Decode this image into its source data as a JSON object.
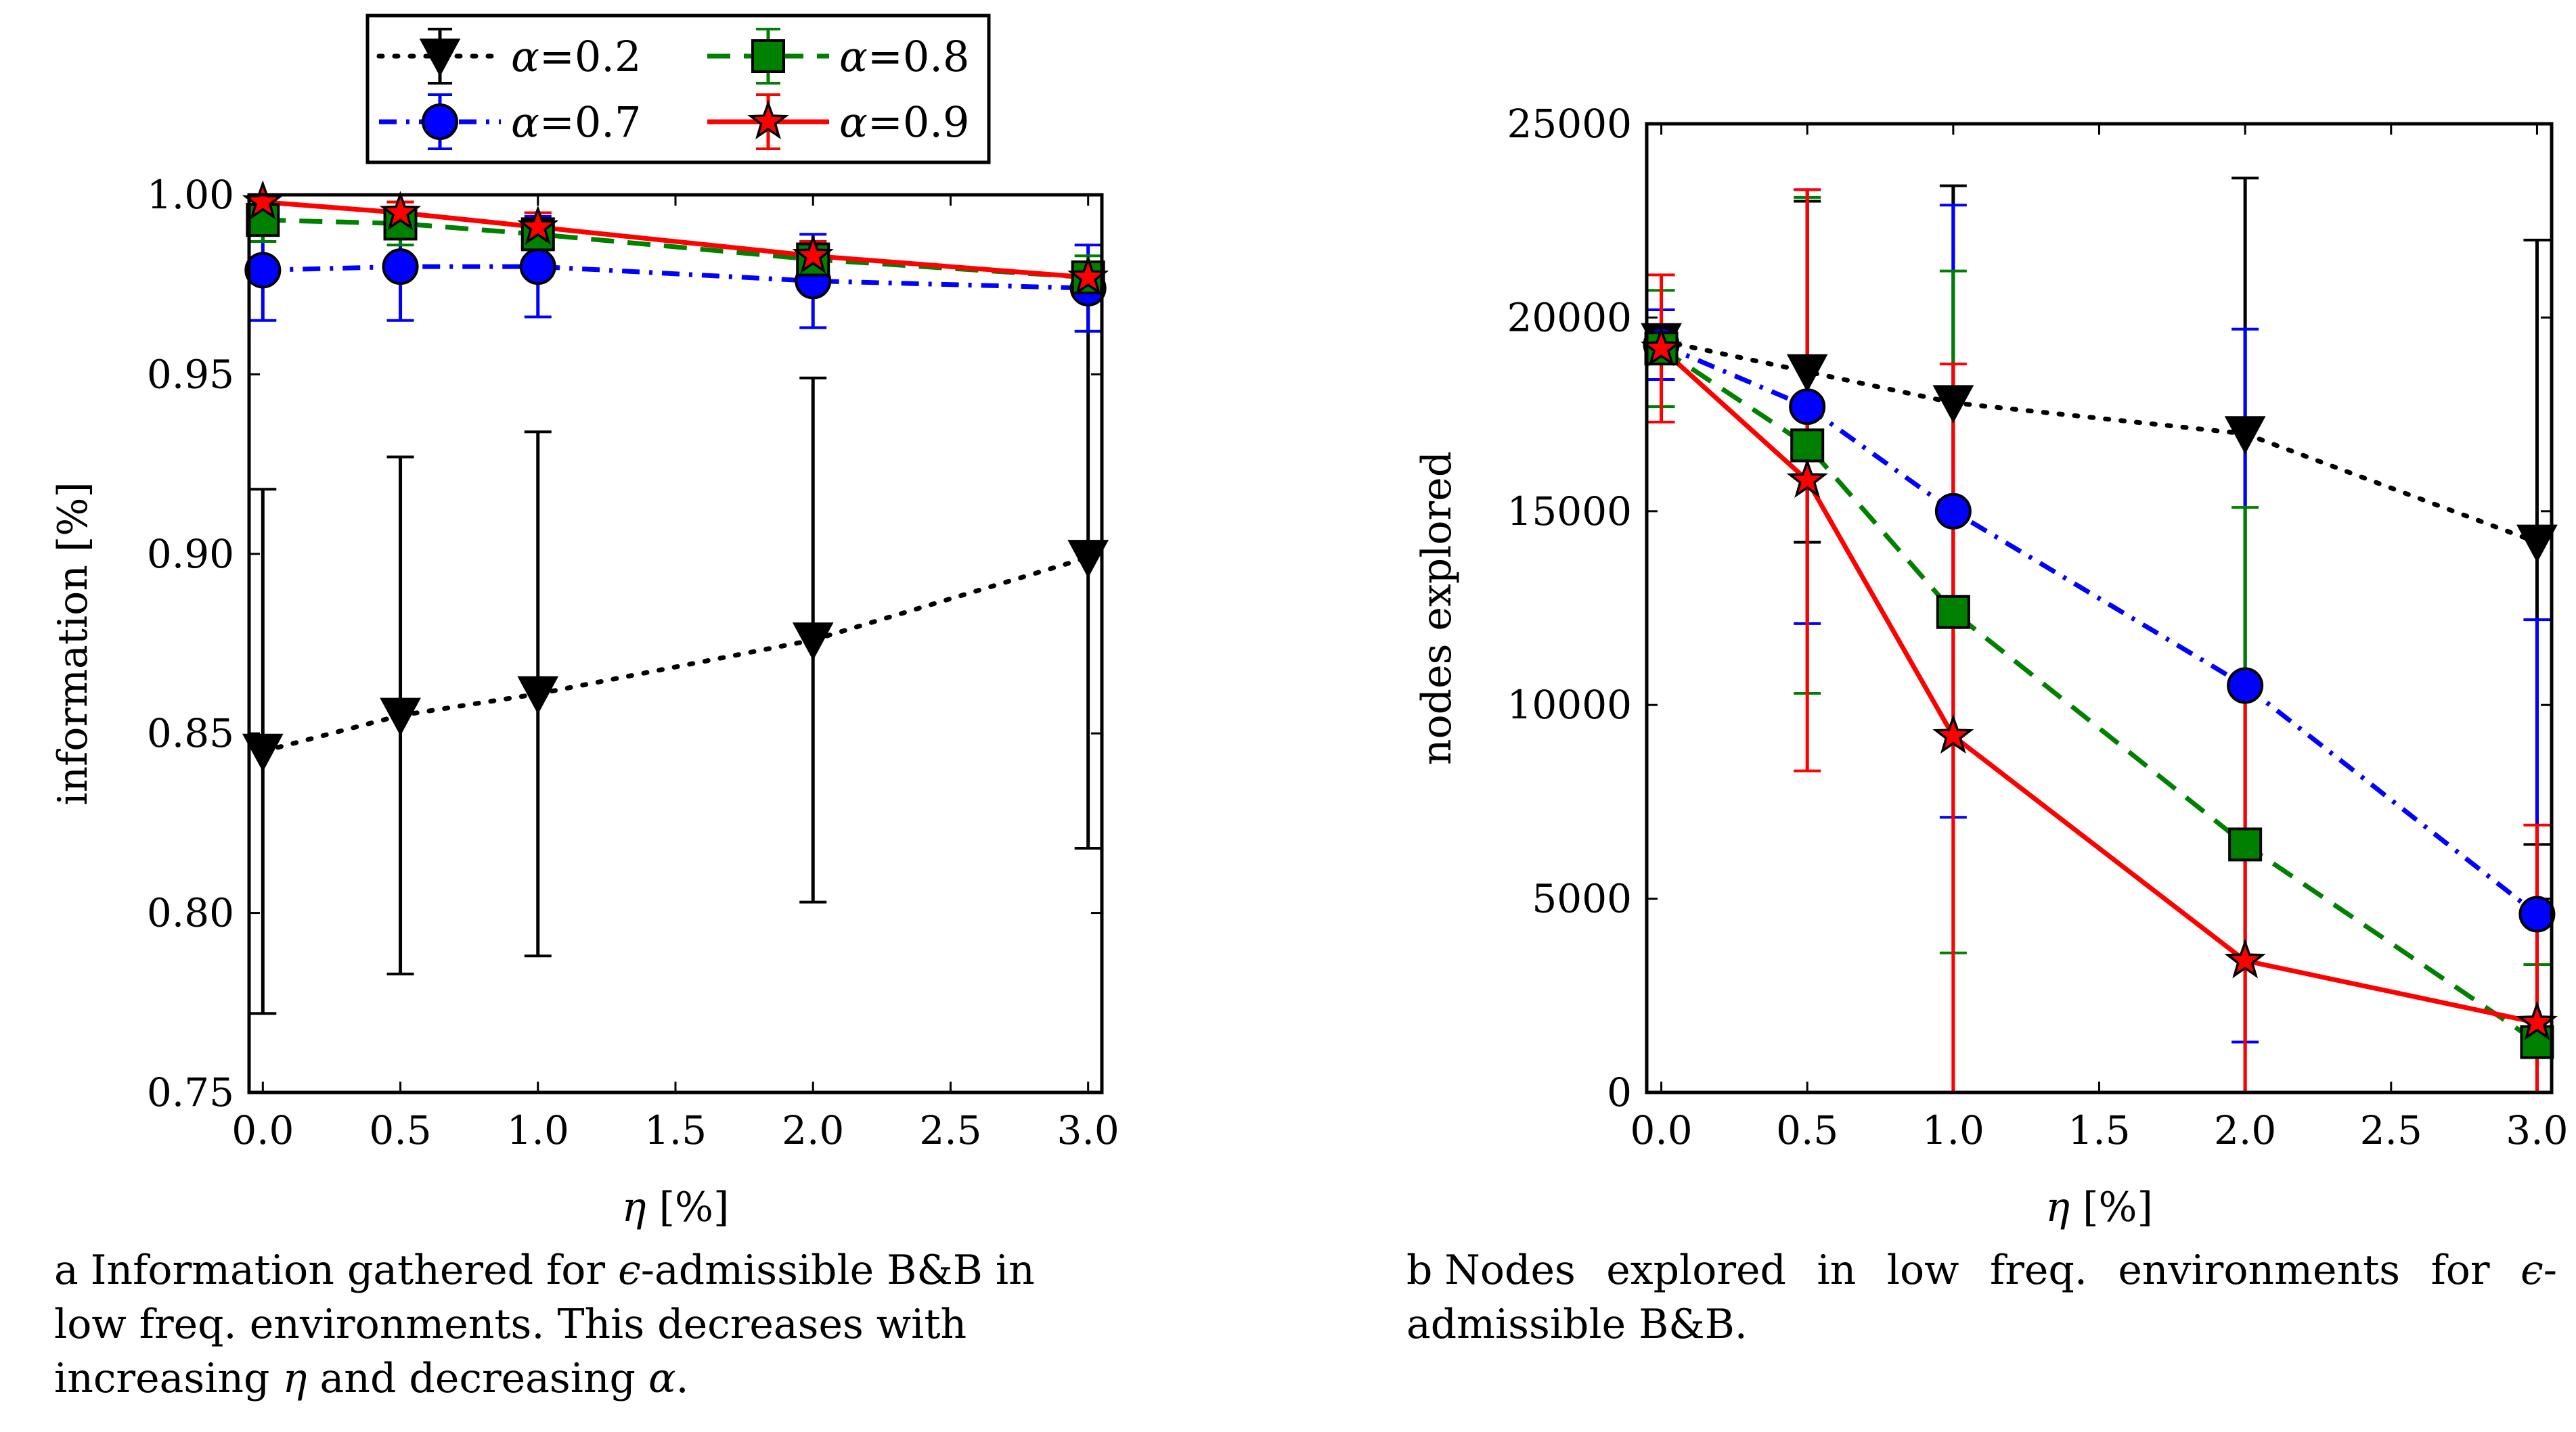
{
  "chart_data": [
    {
      "type": "line",
      "panel_label": "a",
      "x": [
        0.0,
        0.5,
        1.0,
        2.0,
        3.0
      ],
      "xlabel": "η [%]",
      "ylabel": "information [%]",
      "xlim": [
        -0.05,
        3.05
      ],
      "ylim": [
        0.75,
        1.0
      ],
      "xticks": [
        "0.0",
        "0.5",
        "1.0",
        "1.5",
        "2.0",
        "2.5",
        "3.0"
      ],
      "xtick_values": [
        0.0,
        0.5,
        1.0,
        1.5,
        2.0,
        2.5,
        3.0
      ],
      "yticks": [
        "0.75",
        "0.80",
        "0.85",
        "0.90",
        "0.95",
        "1.00"
      ],
      "ytick_values": [
        0.75,
        0.8,
        0.85,
        0.9,
        0.95,
        1.0
      ],
      "series": [
        {
          "name": "α=0.2",
          "color": "#000000",
          "marker": "triangle-down",
          "dash": "dotted",
          "values": [
            0.845,
            0.855,
            0.861,
            0.876,
            0.899
          ],
          "err": [
            0.073,
            0.072,
            0.073,
            0.073,
            0.081
          ]
        },
        {
          "name": "α=0.7",
          "color": "#0000ff",
          "marker": "circle",
          "dash": "dashdot",
          "values": [
            0.979,
            0.98,
            0.98,
            0.976,
            0.974
          ],
          "err": [
            0.014,
            0.015,
            0.014,
            0.013,
            0.012
          ]
        },
        {
          "name": "α=0.8",
          "color": "#008000",
          "marker": "square",
          "dash": "dashed",
          "values": [
            0.993,
            0.992,
            0.989,
            0.982,
            0.977
          ],
          "err": [
            0.006,
            0.006,
            0.006,
            0.005,
            0.006
          ]
        },
        {
          "name": "α=0.9",
          "color": "#ff0000",
          "marker": "star",
          "dash": "solid",
          "values": [
            0.998,
            0.995,
            0.991,
            0.983,
            0.977
          ],
          "err": [
            0.003,
            0.003,
            0.004,
            0.004,
            0.004
          ]
        }
      ],
      "legend": {
        "position": "top-center",
        "columns": 2
      },
      "caption_letter": "a",
      "caption_parts": [
        "Information gathered for ",
        "ϵ",
        "-admissible B&B in low freq. environments. This decreases with increasing ",
        "η",
        " and decreasing ",
        "α",
        "."
      ]
    },
    {
      "type": "line",
      "panel_label": "b",
      "x": [
        0.0,
        0.5,
        1.0,
        2.0,
        3.0
      ],
      "xlabel": "η [%]",
      "ylabel": "nodes explored",
      "xlim": [
        -0.05,
        3.05
      ],
      "ylim": [
        0,
        25000
      ],
      "xticks": [
        "0.0",
        "0.5",
        "1.0",
        "1.5",
        "2.0",
        "2.5",
        "3.0"
      ],
      "xtick_values": [
        0.0,
        0.5,
        1.0,
        1.5,
        2.0,
        2.5,
        3.0
      ],
      "yticks": [
        "0",
        "5000",
        "10000",
        "15000",
        "20000",
        "25000"
      ],
      "ytick_values": [
        0,
        5000,
        10000,
        15000,
        20000,
        25000
      ],
      "series": [
        {
          "name": "α=0.2",
          "color": "#000000",
          "marker": "triangle-down",
          "dash": "dotted",
          "values": [
            19400,
            18600,
            17800,
            17000,
            14200
          ],
          "err": [
            300,
            4400,
            5600,
            6600,
            7800
          ]
        },
        {
          "name": "α=0.7",
          "color": "#0000ff",
          "marker": "circle",
          "dash": "dashdot",
          "values": [
            19300,
            17700,
            15000,
            10500,
            4600
          ],
          "err": [
            900,
            5600,
            7900,
            9200,
            7600
          ]
        },
        {
          "name": "α=0.8",
          "color": "#008000",
          "marker": "square",
          "dash": "dashed",
          "values": [
            19200,
            16700,
            12400,
            6400,
            1300
          ],
          "err": [
            1500,
            6400,
            8800,
            8700,
            2000
          ]
        },
        {
          "name": "α=0.9",
          "color": "#ff0000",
          "marker": "star",
          "dash": "solid",
          "values": [
            19200,
            15800,
            9200,
            3400,
            1800
          ],
          "err": [
            1900,
            7500,
            9600,
            7000,
            5100
          ]
        }
      ],
      "caption_letter": "b",
      "caption_parts": [
        "Nodes explored in low freq. environments for ",
        "ϵ",
        "-admissible B&B."
      ]
    }
  ]
}
